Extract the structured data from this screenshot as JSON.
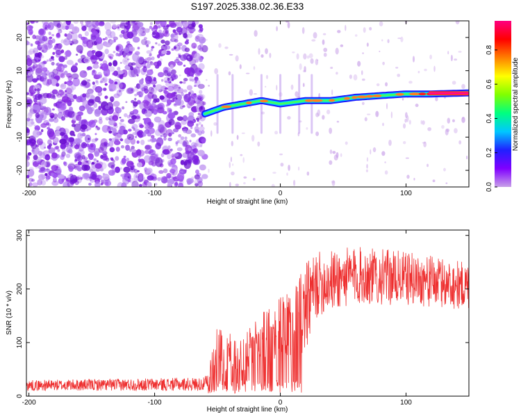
{
  "title": "S197.2025.338.02.36.E33",
  "chart_data": [
    {
      "type": "heatmap",
      "panel": "spectrogram",
      "xlabel": "Height of straight line (km)",
      "ylabel": "Frequency (Hz)",
      "xlim": [
        -202,
        150
      ],
      "ylim": [
        -25,
        25
      ],
      "xticks": [
        -200,
        -100,
        0,
        100
      ],
      "yticks": [
        -20,
        -10,
        0,
        10,
        20
      ],
      "colorbar": {
        "label": "Normalized spectral amplitude",
        "range": [
          0.0,
          0.97
        ],
        "ticks": [
          0.0,
          0.2,
          0.4,
          0.6,
          0.8
        ],
        "colormap": [
          "#c8a0e8",
          "#8000ff",
          "#2020ff",
          "#00c8ff",
          "#00ff80",
          "#80ff00",
          "#ffff00",
          "#ff8000",
          "#ff0000",
          "#ff0080"
        ]
      },
      "noise_region_x": [
        -202,
        -60
      ],
      "onset_x": -60,
      "ridge": [
        {
          "x": -60,
          "f": -3
        },
        {
          "x": -45,
          "f": -1
        },
        {
          "x": -30,
          "f": 0
        },
        {
          "x": -15,
          "f": 1
        },
        {
          "x": 0,
          "f": 0
        },
        {
          "x": 20,
          "f": 1
        },
        {
          "x": 40,
          "f": 1
        },
        {
          "x": 60,
          "f": 2
        },
        {
          "x": 80,
          "f": 2.5
        },
        {
          "x": 100,
          "f": 3
        },
        {
          "x": 120,
          "f": 3
        },
        {
          "x": 150,
          "f": 3.3
        }
      ]
    },
    {
      "type": "line",
      "panel": "snr",
      "xlabel": "Height of straight line (km)",
      "ylabel": "SNR (10 * v/v)",
      "xlim": [
        -202,
        150
      ],
      "ylim": [
        0,
        310
      ],
      "xticks": [
        -200,
        -100,
        0,
        100
      ],
      "yticks": [
        0,
        100,
        200,
        300
      ],
      "series_color": "#ee3030",
      "envelope": [
        {
          "x": -202,
          "base": 10,
          "amp": 20
        },
        {
          "x": -60,
          "base": 10,
          "amp": 25
        },
        {
          "x": -50,
          "base": 40,
          "amp": 90
        },
        {
          "x": -30,
          "base": 40,
          "amp": 70
        },
        {
          "x": -10,
          "base": 60,
          "amp": 110
        },
        {
          "x": 10,
          "base": 70,
          "amp": 130
        },
        {
          "x": 17,
          "base": 60,
          "amp": 180
        },
        {
          "x": 30,
          "base": 150,
          "amp": 120
        },
        {
          "x": 60,
          "base": 170,
          "amp": 110
        },
        {
          "x": 100,
          "base": 170,
          "amp": 100
        },
        {
          "x": 150,
          "base": 160,
          "amp": 90
        }
      ]
    }
  ]
}
